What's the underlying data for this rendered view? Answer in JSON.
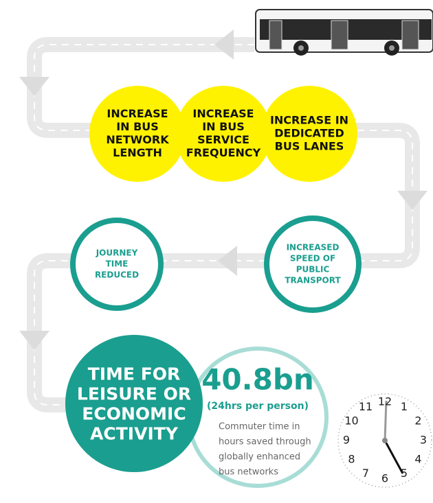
{
  "steps": [
    {
      "lines": [
        "INCREASE",
        "IN BUS",
        "NETWORK",
        "LENGTH"
      ]
    },
    {
      "lines": [
        "INCREASE",
        "IN BUS",
        "SERVICE",
        "FREQUENCY"
      ]
    },
    {
      "lines": [
        "INCREASE IN",
        "DEDICATED",
        "BUS LANES"
      ]
    }
  ],
  "effects": [
    {
      "lines": [
        "INCREASED",
        "SPEED OF",
        "PUBLIC",
        "TRANSPORT"
      ]
    },
    {
      "lines": [
        "JOURNEY",
        "TIME",
        "REDUCED"
      ]
    }
  ],
  "outcome": {
    "lines": [
      "TIME FOR",
      "LEISURE OR",
      "ECONOMIC",
      "ACTIVITY"
    ]
  },
  "stat": {
    "value": "40.8bn",
    "note": "(24hrs per person)",
    "description": [
      "Commuter time in",
      "hours saved through",
      "globally enhanced",
      "bus networks"
    ]
  },
  "clock": {
    "numbers": [
      "12",
      "1",
      "2",
      "3",
      "4",
      "5",
      "6",
      "7",
      "8",
      "9",
      "10",
      "11"
    ]
  }
}
